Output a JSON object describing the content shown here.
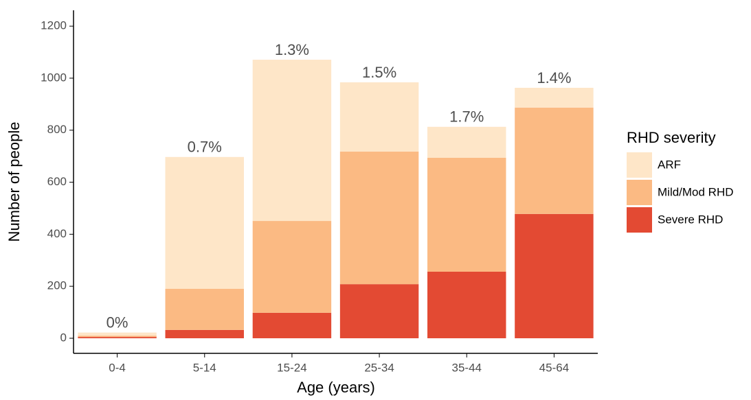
{
  "chart_data": {
    "type": "stacked_bar",
    "x_label": "Age (years)",
    "y_label": "Number of people",
    "legend_title": "RHD severity",
    "categories": [
      "0-4",
      "5-14",
      "15-24",
      "25-34",
      "35-44",
      "45-64"
    ],
    "series": [
      {
        "name": "ARF",
        "color": "#fee6c8",
        "values": [
          12,
          507,
          620,
          266,
          119,
          76
        ]
      },
      {
        "name": "Mild/Mod RHD",
        "color": "#fbba83",
        "values": [
          5,
          158,
          353,
          510,
          438,
          409
        ]
      },
      {
        "name": "Severe RHD",
        "color": "#e34a33",
        "values": [
          5,
          32,
          98,
          208,
          256,
          478
        ]
      }
    ],
    "annotations": [
      "0%",
      "0.7%",
      "1.3%",
      "1.5%",
      "1.7%",
      "1.4%"
    ],
    "ylim": [
      -58,
      1261
    ],
    "yticks": [
      0,
      200,
      400,
      600,
      800,
      1000,
      1200
    ],
    "legend": "right"
  }
}
